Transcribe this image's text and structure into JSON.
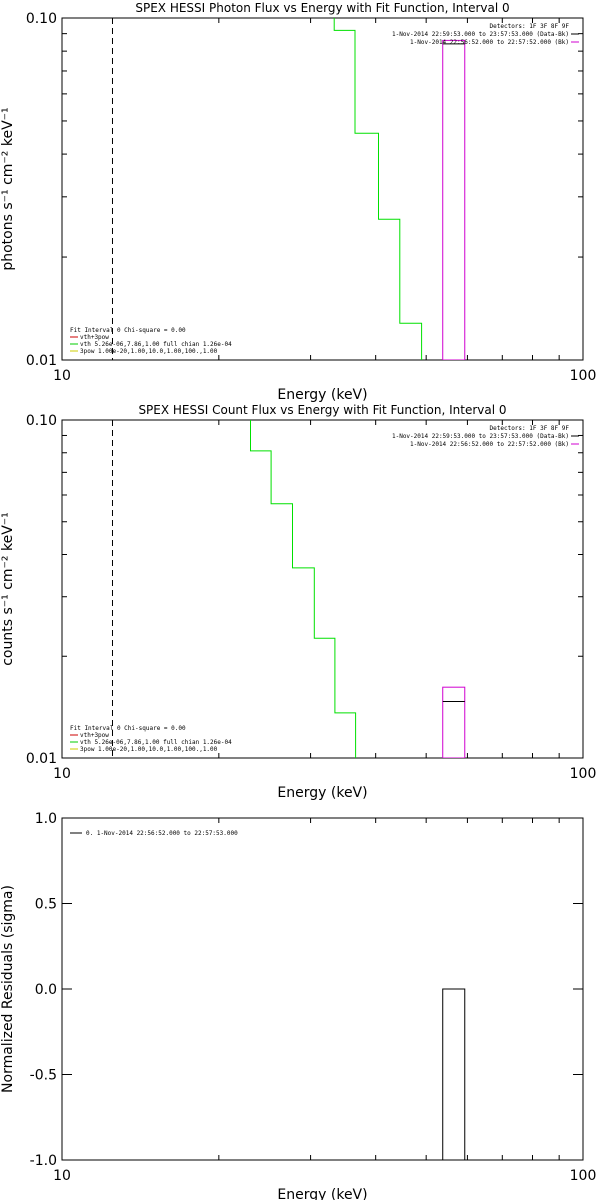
{
  "colors": {
    "background": "#ffffff",
    "axes": "#000000",
    "model": "#00e000",
    "data": "#d000d0",
    "residual": "#000000",
    "legend_red": "#cc0000",
    "legend_green": "#00cc00",
    "legend_yellow": "#cccc00"
  },
  "chart_data": [
    {
      "id": "photon",
      "type": "line",
      "title": "SPEX HESSI Photon Flux vs Energy with Fit Function, Interval 0",
      "xlabel": "Energy (keV)",
      "ylabel": "photons s⁻¹ cm⁻² keV⁻¹",
      "xscale": "log",
      "yscale": "log",
      "xlim": [
        10,
        100
      ],
      "ylim": [
        0.01,
        0.1
      ],
      "xticks": [
        {
          "value": 10,
          "label": "10"
        },
        {
          "value": 100,
          "label": "100"
        }
      ],
      "yticks": [
        {
          "value": 0.01,
          "label": "0.01"
        },
        {
          "value": 0.1,
          "label": "0.10"
        }
      ],
      "yminor": [
        0.02,
        0.03,
        0.04,
        0.05,
        0.06,
        0.07,
        0.08,
        0.09
      ],
      "vline": 12.5,
      "model_x": [
        33.3,
        33.3,
        36.5,
        36.5,
        40.5,
        40.5,
        44.5,
        44.5,
        49.0,
        49.0
      ],
      "model_y": [
        0.1,
        0.092,
        0.092,
        0.046,
        0.046,
        0.0258,
        0.0258,
        0.0128,
        0.0128,
        0.01
      ],
      "data_box": {
        "x": [
          53.8,
          59.3
        ],
        "y": [
          0.01,
          0.086
        ],
        "line_y": 0.084
      },
      "legend_top": [
        {
          "text": "Detectors: 1F 3F 8F 9F",
          "color": ""
        },
        {
          "text": "1-Nov-2014 22:59:53.000 to 23:57:53.000 (Data-Bk)",
          "color": "#000000"
        },
        {
          "text": "1-Nov-2014 22:56:52.000 to 22:57:52.000 (Bk)",
          "color": "#d000d0"
        }
      ],
      "legend_bottom": [
        {
          "text": "Fit Interval  0   Chi-square = 0.00",
          "color": ""
        },
        {
          "text": "vth+3pow",
          "color": "#cc0000"
        },
        {
          "text": "vth 5.26e-06,7.86,1.00  full chian 1.26e-04",
          "color": "#00cc00"
        },
        {
          "text": "3pow 1.00e-20,1.00,10.0,1.00,100.,1.00",
          "color": "#cccc00"
        }
      ]
    },
    {
      "id": "count",
      "type": "line",
      "title": "SPEX HESSI Count Flux vs Energy with Fit Function, Interval 0",
      "xlabel": "Energy (keV)",
      "ylabel": "counts s⁻¹ cm⁻² keV⁻¹",
      "xscale": "log",
      "yscale": "log",
      "xlim": [
        10,
        100
      ],
      "ylim": [
        0.01,
        0.1
      ],
      "xticks": [
        {
          "value": 10,
          "label": "10"
        },
        {
          "value": 100,
          "label": "100"
        }
      ],
      "yticks": [
        {
          "value": 0.01,
          "label": "0.01"
        },
        {
          "value": 0.1,
          "label": "0.10"
        }
      ],
      "yminor": [
        0.02,
        0.03,
        0.04,
        0.05,
        0.06,
        0.07,
        0.08,
        0.09
      ],
      "vline": 12.5,
      "model_x": [
        23.0,
        23.0,
        25.2,
        25.2,
        27.7,
        27.7,
        30.5,
        30.5,
        33.4,
        33.4,
        36.6,
        36.6
      ],
      "model_y": [
        0.1,
        0.081,
        0.081,
        0.0565,
        0.0565,
        0.0365,
        0.0365,
        0.0226,
        0.0226,
        0.0136,
        0.0136,
        0.01
      ],
      "data_box": {
        "x": [
          53.8,
          59.3
        ],
        "y": [
          0.01,
          0.0162
        ],
        "line_y": 0.0147
      },
      "legend_top": [
        {
          "text": "Detectors: 1F 3F 8F 9F",
          "color": ""
        },
        {
          "text": "1-Nov-2014 22:59:53.000 to 23:57:53.000 (Data-Bk)",
          "color": "#000000"
        },
        {
          "text": "1-Nov-2014 22:56:52.000 to 22:57:52.000 (Bk)",
          "color": "#d000d0"
        }
      ],
      "legend_bottom": [
        {
          "text": "Fit Interval  0   Chi-square = 0.00",
          "color": ""
        },
        {
          "text": "vth+3pow",
          "color": "#cc0000"
        },
        {
          "text": "vth 5.26e-06,7.86,1.00  full chian 1.26e-04",
          "color": "#00cc00"
        },
        {
          "text": "3pow 1.00e-20,1.00,10.0,1.00,100.,1.00",
          "color": "#cccc00"
        }
      ]
    },
    {
      "id": "residuals",
      "type": "line",
      "title": "",
      "xlabel": "Energy (keV)",
      "ylabel": "Normalized Residuals (sigma)",
      "xscale": "log",
      "yscale": "linear",
      "xlim": [
        10,
        100
      ],
      "ylim": [
        -1.0,
        1.0
      ],
      "xticks": [
        {
          "value": 10,
          "label": "10"
        },
        {
          "value": 100,
          "label": "100"
        }
      ],
      "yticks": [
        {
          "value": 1.0,
          "label": "1.0"
        },
        {
          "value": 0.5,
          "label": "0.5"
        },
        {
          "value": 0.0,
          "label": "0.0"
        },
        {
          "value": -0.5,
          "label": "-0.5"
        },
        {
          "value": -1.0,
          "label": "-1.0"
        }
      ],
      "yminor": [],
      "residual_box": {
        "x": [
          53.8,
          59.3
        ],
        "y": [
          -1.0,
          0.0
        ]
      },
      "legend_top": [
        {
          "text": "0.  1-Nov-2014 22:56:52.000 to 22:57:53.000",
          "color": "#000000"
        }
      ],
      "legend_bottom": []
    }
  ]
}
